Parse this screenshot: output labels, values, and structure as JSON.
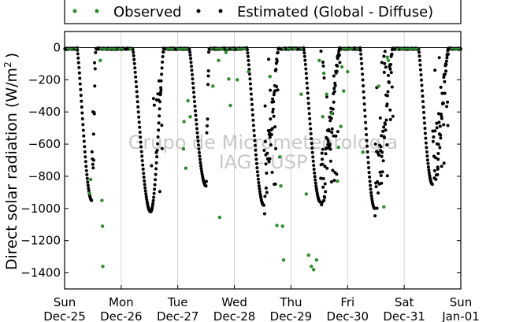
{
  "chart_data": {
    "type": "scatter",
    "title": "",
    "ylabel": "Direct solar radiation (W/m",
    "ylabel_sup": "2",
    "ylabel_end": ")",
    "ylim": [
      -1500,
      100
    ],
    "xlim": [
      0,
      7
    ],
    "grid": "vertical day lines",
    "legend_placement": "top",
    "watermark": [
      "Grupo de Micrometeorologia",
      "IAG - USP"
    ],
    "yticks": [
      {
        "value": 0,
        "label": "0"
      },
      {
        "value": -200,
        "label": "−200"
      },
      {
        "value": -400,
        "label": "−400"
      },
      {
        "value": -600,
        "label": "−600"
      },
      {
        "value": -800,
        "label": "−800"
      },
      {
        "value": -1000,
        "label": "−1000"
      },
      {
        "value": -1200,
        "label": "−1200"
      },
      {
        "value": -1400,
        "label": "−1400"
      }
    ],
    "xticks": [
      {
        "value": 0,
        "day": "Sun",
        "date": "Dec-25"
      },
      {
        "value": 1,
        "day": "Mon",
        "date": "Dec-26"
      },
      {
        "value": 2,
        "day": "Tue",
        "date": "Dec-27"
      },
      {
        "value": 3,
        "day": "Wed",
        "date": "Dec-28"
      },
      {
        "value": 4,
        "day": "Thu",
        "date": "Dec-29"
      },
      {
        "value": 5,
        "day": "Fri",
        "date": "Dec-30"
      },
      {
        "value": 6,
        "day": "Sat",
        "date": "Dec-31"
      },
      {
        "value": 7,
        "day": "Sun",
        "date": "Jan-01"
      }
    ],
    "colors": {
      "observed": "#2e8b2e",
      "estimated": "#000000"
    },
    "series": [
      {
        "name": "Observed",
        "points": [
          [
            0.44,
            -905
          ],
          [
            0.46,
            -820
          ],
          [
            0.63,
            -80
          ],
          [
            0.66,
            -950
          ],
          [
            0.67,
            -1110
          ],
          [
            0.675,
            -1360
          ],
          [
            2.1,
            -630
          ],
          [
            2.11,
            -460
          ],
          [
            2.14,
            -750
          ],
          [
            2.18,
            -330
          ],
          [
            2.22,
            -430
          ],
          [
            2.62,
            -240
          ],
          [
            2.72,
            -80
          ],
          [
            2.74,
            -1055
          ],
          [
            2.85,
            -30
          ],
          [
            2.9,
            -195
          ],
          [
            2.93,
            -360
          ],
          [
            3.05,
            -200
          ],
          [
            3.25,
            -150
          ],
          [
            3.63,
            -180
          ],
          [
            3.75,
            -1105
          ],
          [
            3.8,
            -680
          ],
          [
            3.82,
            -860
          ],
          [
            3.85,
            -1110
          ],
          [
            3.87,
            -1320
          ],
          [
            4.18,
            -290
          ],
          [
            4.27,
            -910
          ],
          [
            4.31,
            -1290
          ],
          [
            4.36,
            -1360
          ],
          [
            4.4,
            -1380
          ],
          [
            4.45,
            -1320
          ],
          [
            4.5,
            -80
          ],
          [
            4.56,
            -430
          ],
          [
            4.58,
            -160
          ],
          [
            4.63,
            -290
          ],
          [
            4.72,
            -410
          ],
          [
            4.82,
            -830
          ],
          [
            4.84,
            -620
          ],
          [
            4.88,
            -490
          ],
          [
            4.9,
            -120
          ],
          [
            4.93,
            -270
          ],
          [
            5.0,
            -150
          ],
          [
            5.27,
            -650
          ],
          [
            5.55,
            -240
          ],
          [
            5.64,
            -990
          ],
          [
            5.7,
            -60
          ],
          [
            5.72,
            -80
          ]
        ]
      },
      {
        "name": "Estimated (Global - Diffuse)",
        "days": [
          {
            "dip": [
              0.22,
              0.55
            ],
            "peak": 0.48,
            "min": -950
          },
          {
            "dip": [
              1.2,
              1.75
            ],
            "peak": 1.52,
            "min": -1020
          },
          {
            "dip": [
              2.2,
              2.55
            ],
            "peak": 2.5,
            "min": -860
          },
          {
            "dip": [
              3.22,
              3.78
            ],
            "peak": 3.52,
            "min": -980
          },
          {
            "dip": [
              4.22,
              4.86
            ],
            "peak": 4.52,
            "min": -960
          },
          {
            "dip": [
              5.22,
              5.8
            ],
            "peak": 5.48,
            "min": -1000
          },
          {
            "dip": [
              6.25,
              6.78
            ],
            "peak": 6.5,
            "min": -850
          }
        ]
      }
    ]
  }
}
